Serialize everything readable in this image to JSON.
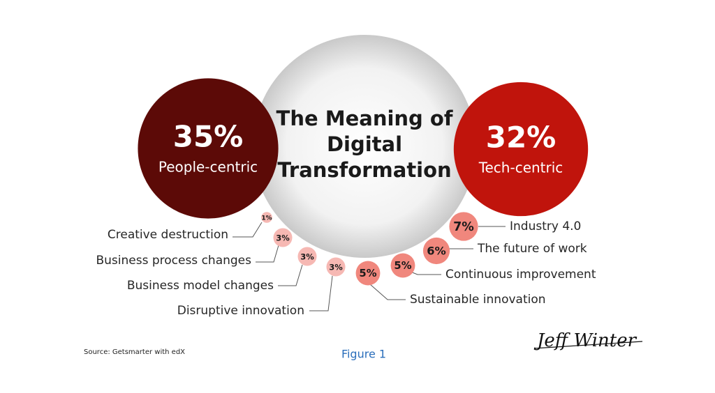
{
  "chart_data": {
    "type": "bubble",
    "title": "The Meaning of Digital Transformation",
    "groups": [
      {
        "name": "People-centric",
        "value": 35,
        "value_label": "35%",
        "color": "#5c0a07"
      },
      {
        "name": "Tech-centric",
        "value": 32,
        "value_label": "32%",
        "color": "#c0140c"
      }
    ],
    "categories": [
      "Creative destruction",
      "Business process changes",
      "Business model changes",
      "Disruptive innovation",
      "Sustainable innovation",
      "Continuous improvement",
      "The future of work",
      "Industry 4.0"
    ],
    "values": [
      1,
      3,
      3,
      3,
      5,
      5,
      6,
      7
    ],
    "value_labels": [
      "1%",
      "3%",
      "3%",
      "3%",
      "5%",
      "5%",
      "6%",
      "7%"
    ],
    "colors": [
      "#f6b8b3",
      "#f6b8b3",
      "#f6b8b3",
      "#f6b8b3",
      "#f0877d",
      "#f0877d",
      "#f0877d",
      "#f0877d"
    ]
  },
  "source": "Source: Getsmarter with edX",
  "caption": "Figure 1",
  "signature": "Jeff Winter"
}
